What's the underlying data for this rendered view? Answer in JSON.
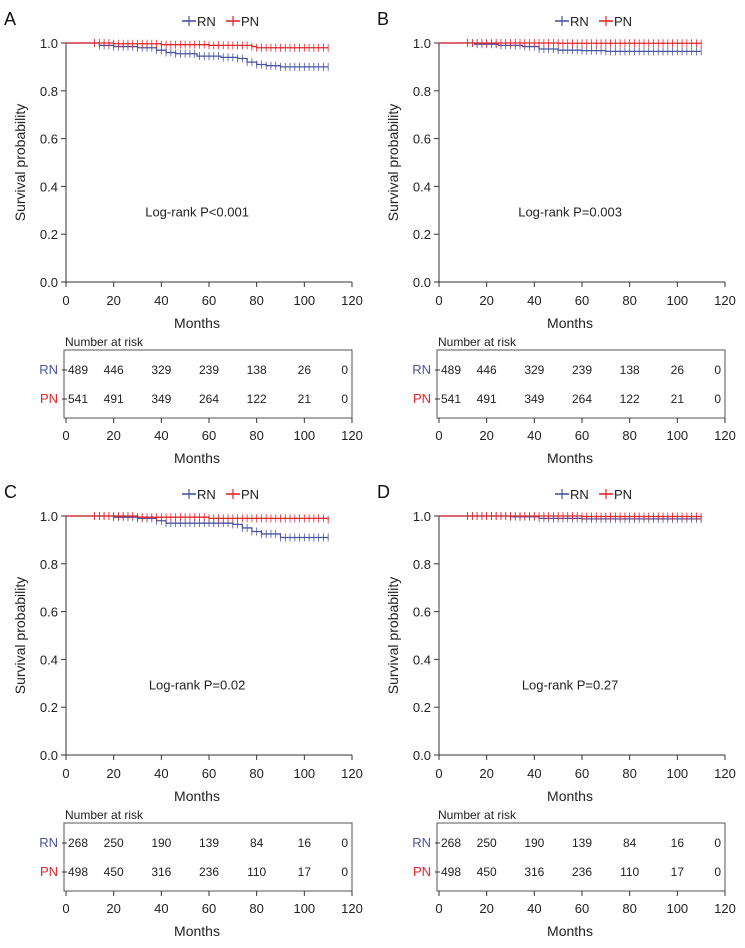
{
  "chart_data": [
    {
      "panel_label": "A",
      "type": "line",
      "legend": [
        {
          "name": "RN",
          "color": "#4a55a2"
        },
        {
          "name": "PN",
          "color": "#e0262b"
        }
      ],
      "ylabel": "Survival probability",
      "xlabel": "Months",
      "xlim": [
        0,
        120
      ],
      "ylim": [
        0,
        1.0
      ],
      "xticks": [
        0,
        20,
        40,
        60,
        80,
        100,
        120
      ],
      "yticks": [
        "0.0",
        "0.2",
        "0.4",
        "0.6",
        "0.8",
        "1.0"
      ],
      "annotation": "Log-rank P<0.001",
      "series": [
        {
          "name": "RN",
          "color": "#4a55a2",
          "x": [
            0,
            14,
            20,
            30,
            38,
            42,
            46,
            55,
            65,
            72,
            76,
            80,
            84,
            90,
            110
          ],
          "y": [
            1.0,
            0.99,
            0.985,
            0.98,
            0.97,
            0.96,
            0.955,
            0.945,
            0.94,
            0.935,
            0.92,
            0.91,
            0.905,
            0.9,
            0.9
          ]
        },
        {
          "name": "PN",
          "color": "#e0262b",
          "x": [
            0,
            20,
            40,
            60,
            78,
            80,
            110
          ],
          "y": [
            1.0,
            0.997,
            0.993,
            0.99,
            0.985,
            0.98,
            0.98
          ]
        }
      ],
      "risk_table": {
        "title": "Number at risk",
        "times": [
          0,
          20,
          40,
          60,
          80,
          100,
          120
        ],
        "rows": [
          {
            "label": "RN",
            "color": "#4a55a2",
            "values": [
              "489",
              "446",
              "329",
              "239",
              "138",
              "26",
              "0"
            ]
          },
          {
            "label": "PN",
            "color": "#e0262b",
            "values": [
              "541",
              "491",
              "349",
              "264",
              "122",
              "21",
              "0"
            ]
          }
        ],
        "xlabel": "Months",
        "xticks": [
          0,
          20,
          40,
          60,
          80,
          100,
          120
        ]
      }
    },
    {
      "panel_label": "B",
      "type": "line",
      "legend": [
        {
          "name": "RN",
          "color": "#4a55a2"
        },
        {
          "name": "PN",
          "color": "#e0262b"
        }
      ],
      "ylabel": "Survival probability",
      "xlabel": "Months",
      "xlim": [
        0,
        120
      ],
      "ylim": [
        0,
        1.0
      ],
      "xticks": [
        0,
        20,
        40,
        60,
        80,
        100,
        120
      ],
      "yticks": [
        "0.0",
        "0.2",
        "0.4",
        "0.6",
        "0.8",
        "1.0"
      ],
      "annotation": "Log-rank P=0.003",
      "series": [
        {
          "name": "RN",
          "color": "#4a55a2",
          "x": [
            0,
            15,
            25,
            35,
            42,
            50,
            60,
            70,
            110
          ],
          "y": [
            1.0,
            0.995,
            0.99,
            0.985,
            0.975,
            0.97,
            0.968,
            0.965,
            0.965
          ]
        },
        {
          "name": "PN",
          "color": "#e0262b",
          "x": [
            0,
            50,
            110
          ],
          "y": [
            1.0,
            0.999,
            0.998
          ]
        }
      ],
      "risk_table": {
        "title": "Number at risk",
        "times": [
          0,
          20,
          40,
          60,
          80,
          100,
          120
        ],
        "rows": [
          {
            "label": "RN",
            "color": "#4a55a2",
            "values": [
              "489",
              "446",
              "329",
              "239",
              "138",
              "26",
              "0"
            ]
          },
          {
            "label": "PN",
            "color": "#e0262b",
            "values": [
              "541",
              "491",
              "349",
              "264",
              "122",
              "21",
              "0"
            ]
          }
        ],
        "xlabel": "Months",
        "xticks": [
          0,
          20,
          40,
          60,
          80,
          100,
          120
        ]
      }
    },
    {
      "panel_label": "C",
      "type": "line",
      "legend": [
        {
          "name": "RN",
          "color": "#4a55a2"
        },
        {
          "name": "PN",
          "color": "#e0262b"
        }
      ],
      "ylabel": "Survival probability",
      "xlabel": "Months",
      "xlim": [
        0,
        120
      ],
      "ylim": [
        0,
        1.0
      ],
      "xticks": [
        0,
        20,
        40,
        60,
        80,
        100,
        120
      ],
      "yticks": [
        "0.0",
        "0.2",
        "0.4",
        "0.6",
        "0.8",
        "1.0"
      ],
      "annotation": "Log-rank P=0.02",
      "series": [
        {
          "name": "RN",
          "color": "#4a55a2",
          "x": [
            0,
            20,
            30,
            38,
            42,
            55,
            70,
            74,
            78,
            82,
            90,
            110
          ],
          "y": [
            1.0,
            0.995,
            0.99,
            0.98,
            0.97,
            0.97,
            0.965,
            0.95,
            0.935,
            0.925,
            0.91,
            0.91
          ]
        },
        {
          "name": "PN",
          "color": "#e0262b",
          "x": [
            0,
            30,
            60,
            110
          ],
          "y": [
            1.0,
            0.995,
            0.99,
            0.985
          ]
        }
      ],
      "risk_table": {
        "title": "Number at risk",
        "times": [
          0,
          20,
          40,
          60,
          80,
          100,
          120
        ],
        "rows": [
          {
            "label": "RN",
            "color": "#4a55a2",
            "values": [
              "268",
              "250",
              "190",
              "139",
              "84",
              "16",
              "0"
            ]
          },
          {
            "label": "PN",
            "color": "#e0262b",
            "values": [
              "498",
              "450",
              "316",
              "236",
              "110",
              "17",
              "0"
            ]
          }
        ],
        "xlabel": "Months",
        "xticks": [
          0,
          20,
          40,
          60,
          80,
          100,
          120
        ]
      }
    },
    {
      "panel_label": "D",
      "type": "line",
      "legend": [
        {
          "name": "RN",
          "color": "#4a55a2"
        },
        {
          "name": "PN",
          "color": "#e0262b"
        }
      ],
      "ylabel": "Survival probability",
      "xlabel": "Months",
      "xlim": [
        0,
        120
      ],
      "ylim": [
        0,
        1.0
      ],
      "xticks": [
        0,
        20,
        40,
        60,
        80,
        100,
        120
      ],
      "yticks": [
        "0.0",
        "0.2",
        "0.4",
        "0.6",
        "0.8",
        "1.0"
      ],
      "annotation": "Log-rank P=0.27",
      "series": [
        {
          "name": "RN",
          "color": "#4a55a2",
          "x": [
            0,
            30,
            42,
            60,
            110
          ],
          "y": [
            1.0,
            0.997,
            0.99,
            0.988,
            0.988
          ]
        },
        {
          "name": "PN",
          "color": "#e0262b",
          "x": [
            0,
            60,
            110
          ],
          "y": [
            1.0,
            0.998,
            0.996
          ]
        }
      ],
      "risk_table": {
        "title": "Number at risk",
        "times": [
          0,
          20,
          40,
          60,
          80,
          100,
          120
        ],
        "rows": [
          {
            "label": "RN",
            "color": "#4a55a2",
            "values": [
              "268",
              "250",
              "190",
              "139",
              "84",
              "16",
              "0"
            ]
          },
          {
            "label": "PN",
            "color": "#e0262b",
            "values": [
              "498",
              "450",
              "316",
              "236",
              "110",
              "17",
              "0"
            ]
          }
        ],
        "xlabel": "Months",
        "xticks": [
          0,
          20,
          40,
          60,
          80,
          100,
          120
        ]
      }
    }
  ]
}
